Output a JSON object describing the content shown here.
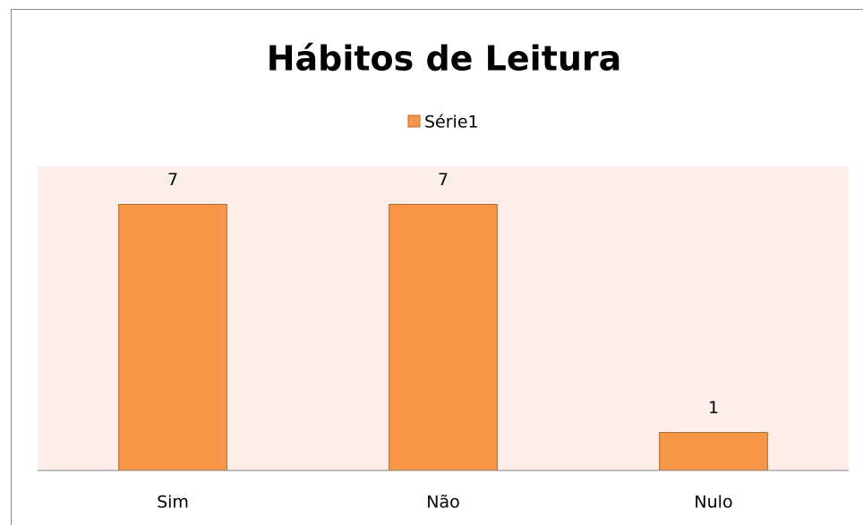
{
  "chart_data": {
    "type": "bar",
    "title": "Hábitos de Leitura",
    "categories": [
      "Sim",
      "Não",
      "Nulo"
    ],
    "series": [
      {
        "name": "Série1",
        "color": "#f79646",
        "values": [
          7,
          7,
          1
        ]
      }
    ],
    "ylim": [
      0,
      8
    ],
    "legend": "top"
  }
}
